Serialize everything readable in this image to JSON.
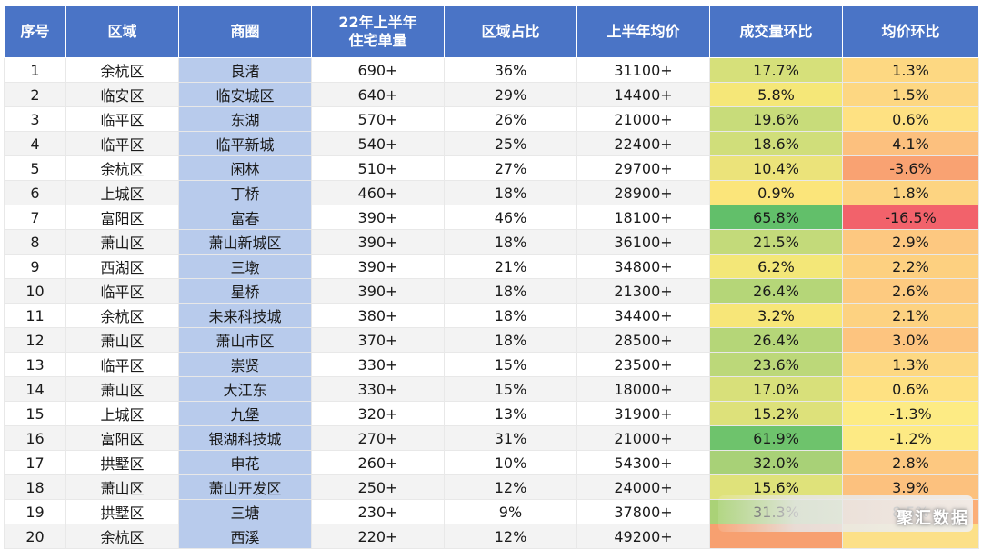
{
  "headers": [
    "序号",
    "区域",
    "商圈",
    "22年上半年住宅单量",
    "区域占比",
    "上半年均价",
    "成交量环比",
    "均价环比"
  ],
  "header_lines": {
    "volume_line1": "22年上半年",
    "volume_line2": "住宅单量"
  },
  "rows": [
    {
      "no": "1",
      "district": "余杭区",
      "area": "良渚",
      "units": "690+",
      "share": "36%",
      "price": "31100+",
      "vol_mom": "17.7%",
      "price_mom": "1.3%"
    },
    {
      "no": "2",
      "district": "临安区",
      "area": "临安城区",
      "units": "640+",
      "share": "29%",
      "price": "14400+",
      "vol_mom": "5.8%",
      "price_mom": "1.5%"
    },
    {
      "no": "3",
      "district": "临平区",
      "area": "东湖",
      "units": "570+",
      "share": "26%",
      "price": "21000+",
      "vol_mom": "19.6%",
      "price_mom": "0.6%"
    },
    {
      "no": "4",
      "district": "临平区",
      "area": "临平新城",
      "units": "540+",
      "share": "25%",
      "price": "22400+",
      "vol_mom": "18.6%",
      "price_mom": "4.1%"
    },
    {
      "no": "5",
      "district": "余杭区",
      "area": "闲林",
      "units": "510+",
      "share": "27%",
      "price": "29700+",
      "vol_mom": "10.4%",
      "price_mom": "-3.6%"
    },
    {
      "no": "6",
      "district": "上城区",
      "area": "丁桥",
      "units": "460+",
      "share": "18%",
      "price": "28900+",
      "vol_mom": "0.9%",
      "price_mom": "1.8%"
    },
    {
      "no": "7",
      "district": "富阳区",
      "area": "富春",
      "units": "390+",
      "share": "46%",
      "price": "18100+",
      "vol_mom": "65.8%",
      "price_mom": "-16.5%"
    },
    {
      "no": "8",
      "district": "萧山区",
      "area": "萧山新城区",
      "units": "390+",
      "share": "18%",
      "price": "36100+",
      "vol_mom": "21.5%",
      "price_mom": "2.9%"
    },
    {
      "no": "9",
      "district": "西湖区",
      "area": "三墩",
      "units": "390+",
      "share": "21%",
      "price": "34800+",
      "vol_mom": "6.2%",
      "price_mom": "2.2%"
    },
    {
      "no": "10",
      "district": "临平区",
      "area": "星桥",
      "units": "390+",
      "share": "18%",
      "price": "21300+",
      "vol_mom": "26.4%",
      "price_mom": "2.6%"
    },
    {
      "no": "11",
      "district": "余杭区",
      "area": "未来科技城",
      "units": "380+",
      "share": "18%",
      "price": "34400+",
      "vol_mom": "3.2%",
      "price_mom": "2.1%"
    },
    {
      "no": "12",
      "district": "萧山区",
      "area": "萧山市区",
      "units": "370+",
      "share": "18%",
      "price": "28500+",
      "vol_mom": "26.4%",
      "price_mom": "3.0%"
    },
    {
      "no": "13",
      "district": "临平区",
      "area": "崇贤",
      "units": "330+",
      "share": "15%",
      "price": "23500+",
      "vol_mom": "23.6%",
      "price_mom": "1.3%"
    },
    {
      "no": "14",
      "district": "萧山区",
      "area": "大江东",
      "units": "330+",
      "share": "15%",
      "price": "18000+",
      "vol_mom": "17.0%",
      "price_mom": "0.6%"
    },
    {
      "no": "15",
      "district": "上城区",
      "area": "九堡",
      "units": "320+",
      "share": "13%",
      "price": "31900+",
      "vol_mom": "15.2%",
      "price_mom": "-1.3%"
    },
    {
      "no": "16",
      "district": "富阳区",
      "area": "银湖科技城",
      "units": "270+",
      "share": "31%",
      "price": "21000+",
      "vol_mom": "61.9%",
      "price_mom": "-1.2%"
    },
    {
      "no": "17",
      "district": "拱墅区",
      "area": "申花",
      "units": "260+",
      "share": "10%",
      "price": "54300+",
      "vol_mom": "32.0%",
      "price_mom": "2.8%"
    },
    {
      "no": "18",
      "district": "萧山区",
      "area": "萧山开发区",
      "units": "250+",
      "share": "12%",
      "price": "24000+",
      "vol_mom": "15.6%",
      "price_mom": "3.9%"
    },
    {
      "no": "19",
      "district": "拱墅区",
      "area": "三塘",
      "units": "230+",
      "share": "9%",
      "price": "37800+",
      "vol_mom": "31.3%",
      "price_mom": "8.5%"
    },
    {
      "no": "20",
      "district": "余杭区",
      "area": "西溪",
      "units": "220+",
      "share": "12%",
      "price": "49200+",
      "vol_mom": "",
      "price_mom": ""
    }
  ],
  "vol_colors": [
    "#d6e07a",
    "#f5e778",
    "#c8dc7a",
    "#d0de7a",
    "#ebe37a",
    "#fbe57a",
    "#62bf6a",
    "#c3da7a",
    "#f3e778",
    "#b5d678",
    "#f7e678",
    "#b5d678",
    "#bcd879",
    "#d8e07a",
    "#dde17a",
    "#6ec36c",
    "#a8d177",
    "#dfe27a",
    "#aad277",
    "#f7a070"
  ],
  "price_colors": [
    "#fdd882",
    "#fdd782",
    "#fee182",
    "#fcc07e",
    "#f9a272",
    "#fdd481",
    "#f2626b",
    "#fdc880",
    "#fdd080",
    "#fdca80",
    "#fdd281",
    "#fdc47f",
    "#fdd882",
    "#fee182",
    "#fdeb84",
    "#fdea84",
    "#fdc880",
    "#fcc17e",
    "#fbae77",
    "#fce088"
  ],
  "watermark": "聚汇数据"
}
